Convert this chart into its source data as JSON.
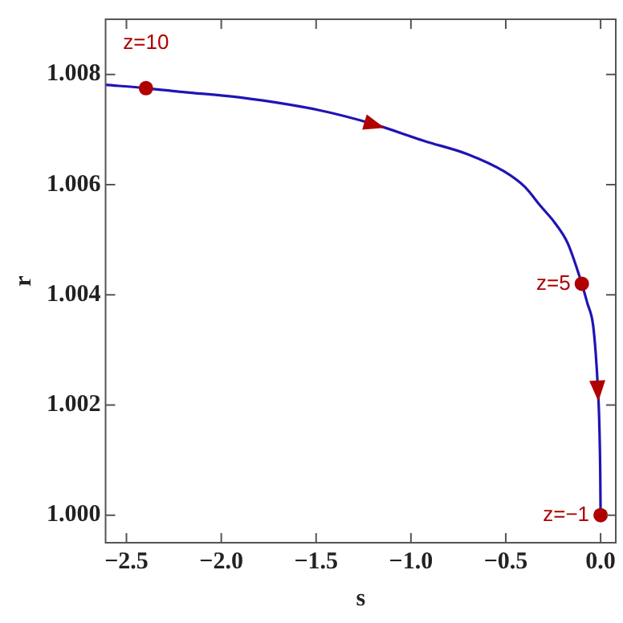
{
  "chart_data": {
    "type": "line",
    "xlabel": "s",
    "ylabel": "r",
    "xlim": [
      -2.61,
      0.08
    ],
    "ylim": [
      0.9995,
      1.009
    ],
    "xticks": [
      {
        "value": -2.5,
        "label": "−2.5"
      },
      {
        "value": -2,
        "label": "−2.0"
      },
      {
        "value": -1.5,
        "label": "−1.5"
      },
      {
        "value": -1,
        "label": "−1.0"
      },
      {
        "value": -0.5,
        "label": "−0.5"
      },
      {
        "value": 0,
        "label": "0.0"
      }
    ],
    "yticks": [
      {
        "value": 1,
        "label": "1.000"
      },
      {
        "value": 1.002,
        "label": "1.002"
      },
      {
        "value": 1.004,
        "label": "1.004"
      },
      {
        "value": 1.006,
        "label": "1.006"
      },
      {
        "value": 1.008,
        "label": "1.008"
      }
    ],
    "grid": false,
    "legend": false,
    "series": [
      {
        "color": "#2014b4",
        "marker": "none",
        "x": [
          -2.61,
          -2.397,
          -2.2,
          -1.9,
          -1.484,
          -1.2,
          -0.928,
          -0.7,
          -0.509,
          -0.4,
          -0.314,
          -0.24,
          -0.174,
          -0.099,
          -0.07,
          -0.04,
          -0.025,
          -0.014,
          -0.008,
          -0.002,
          0
        ],
        "values": [
          1.00781,
          1.00775,
          1.00768,
          1.00758,
          1.00735,
          1.0071,
          1.00679,
          1.00655,
          1.00624,
          1.00596,
          1.0056,
          1.0053,
          1.00494,
          1.0042,
          1.00385,
          1.00346,
          1.0029,
          1.00228,
          1.0018,
          1.0008,
          1.0
        ]
      },
      {
        "type": "scatter",
        "color": "#b00000",
        "marker": "circle",
        "x": [
          -2.397,
          -0.099,
          0
        ],
        "values": [
          1.00775,
          1.0042,
          1.0
        ]
      }
    ],
    "annotations": [
      {
        "text": "z=10",
        "x": -2.397,
        "y": 1.00775
      },
      {
        "text": "z=5",
        "x": -0.099,
        "y": 1.0042
      },
      {
        "text": "z=−1",
        "x": 0,
        "y": 1.0
      }
    ]
  }
}
